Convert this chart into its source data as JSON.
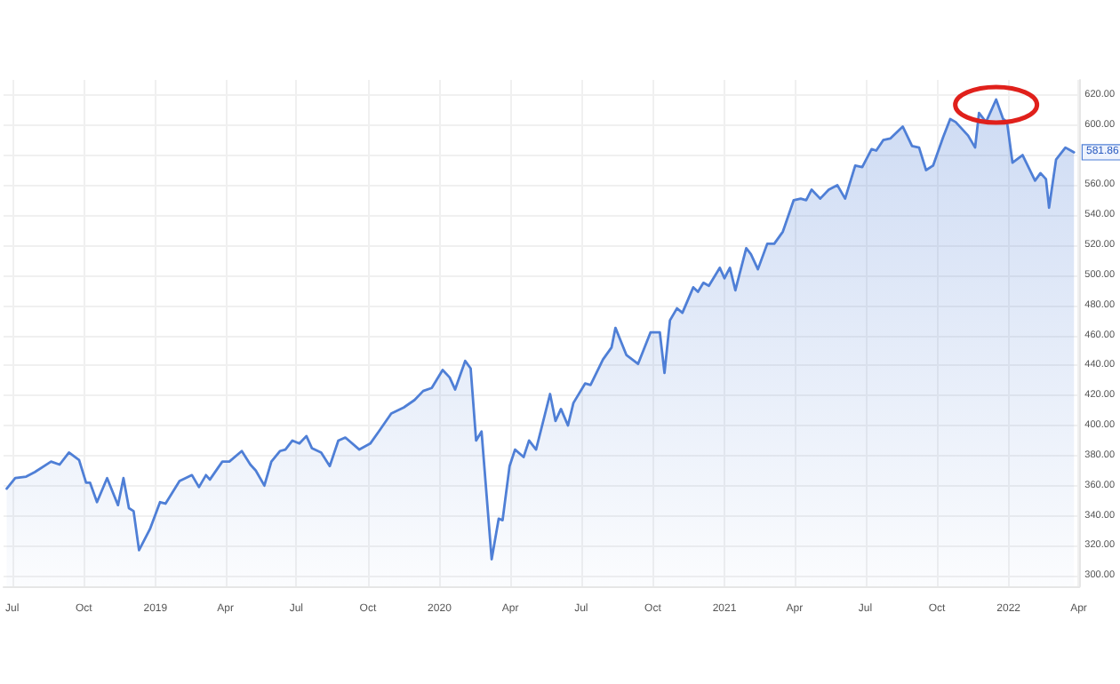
{
  "chart_data": {
    "type": "area",
    "color": "#4f7fd6",
    "marker": "none",
    "grid": true,
    "x": [
      "2018-06-24",
      "2018-07-05",
      "2018-07-19",
      "2018-07-30",
      "2018-08-20",
      "2018-08-31",
      "2018-09-12",
      "2018-09-25",
      "2018-10-04",
      "2018-10-09",
      "2018-10-18",
      "2018-10-31",
      "2018-11-14",
      "2018-11-21",
      "2018-11-28",
      "2018-12-04",
      "2018-12-11",
      "2018-12-25",
      "2019-01-07",
      "2019-01-14",
      "2019-02-01",
      "2019-02-17",
      "2019-02-26",
      "2019-03-07",
      "2019-03-12",
      "2019-03-28",
      "2019-04-06",
      "2019-04-22",
      "2019-05-03",
      "2019-05-10",
      "2019-05-21",
      "2019-05-30",
      "2019-06-10",
      "2019-06-17",
      "2019-06-26",
      "2019-07-05",
      "2019-07-14",
      "2019-07-21",
      "2019-08-02",
      "2019-08-13",
      "2019-08-24",
      "2019-09-02",
      "2019-09-20",
      "2019-10-04",
      "2019-10-15",
      "2019-10-31",
      "2019-11-16",
      "2019-11-30",
      "2019-12-11",
      "2019-12-22",
      "2020-01-05",
      "2020-01-14",
      "2020-01-21",
      "2020-02-03",
      "2020-02-10",
      "2020-02-17",
      "2020-02-24",
      "2020-03-08",
      "2020-03-17",
      "2020-03-22",
      "2020-03-31",
      "2020-04-07",
      "2020-04-18",
      "2020-04-25",
      "2020-05-04",
      "2020-05-22",
      "2020-05-29",
      "2020-06-05",
      "2020-06-14",
      "2020-06-21",
      "2020-07-06",
      "2020-07-13",
      "2020-07-29",
      "2020-08-09",
      "2020-08-14",
      "2020-08-28",
      "2020-09-12",
      "2020-09-28",
      "2020-10-10",
      "2020-10-16",
      "2020-10-23",
      "2020-11-01",
      "2020-11-08",
      "2020-11-22",
      "2020-11-28",
      "2020-12-05",
      "2020-12-12",
      "2020-12-26",
      "2021-01-01",
      "2021-01-08",
      "2021-01-15",
      "2021-01-29",
      "2021-02-04",
      "2021-02-13",
      "2021-02-25",
      "2021-03-06",
      "2021-03-17",
      "2021-03-31",
      "2021-04-09",
      "2021-04-16",
      "2021-04-23",
      "2021-05-04",
      "2021-05-15",
      "2021-05-26",
      "2021-06-05",
      "2021-06-18",
      "2021-06-27",
      "2021-07-09",
      "2021-07-15",
      "2021-07-24",
      "2021-08-02",
      "2021-08-18",
      "2021-08-30",
      "2021-09-08",
      "2021-09-17",
      "2021-09-26",
      "2021-10-09",
      "2021-10-18",
      "2021-10-25",
      "2021-11-10",
      "2021-11-19",
      "2021-11-24",
      "2021-12-03",
      "2021-12-16",
      "2021-12-25",
      "2021-12-30",
      "2022-01-06",
      "2022-01-19",
      "2022-02-04",
      "2022-02-11",
      "2022-02-18",
      "2022-02-22",
      "2022-03-03",
      "2022-03-15",
      "2022-03-22",
      "2022-03-26"
    ],
    "values": [
      358,
      365,
      366,
      369,
      376,
      374,
      382,
      377,
      362,
      362,
      349,
      365,
      347,
      365,
      345,
      343,
      317,
      331,
      349,
      348,
      363,
      367,
      359,
      367,
      364,
      376,
      376,
      383,
      374,
      370,
      360,
      376,
      383,
      384,
      390,
      388,
      393,
      385,
      382,
      373,
      390,
      392,
      384,
      388,
      396,
      408,
      412,
      417,
      423,
      425,
      437,
      432,
      424,
      443,
      438,
      390,
      396,
      311,
      338,
      337,
      373,
      384,
      379,
      390,
      384,
      421,
      403,
      411,
      400,
      415,
      428,
      427,
      444,
      452,
      465,
      447,
      441,
      462,
      462,
      435,
      470,
      478,
      475,
      492,
      489,
      495,
      493,
      505,
      498,
      505,
      490,
      518,
      514,
      504,
      521,
      521,
      529,
      550,
      551,
      550,
      557,
      551,
      557,
      560,
      551,
      573,
      572,
      584,
      583,
      590,
      591,
      599,
      586,
      585,
      570,
      573,
      592,
      604,
      602,
      593,
      585,
      608,
      602,
      617,
      604,
      602,
      575,
      580,
      563,
      568,
      564,
      545,
      577,
      585,
      583,
      581.86
    ],
    "xlim": [
      "2018-06-20",
      "2022-04-02"
    ],
    "xticks": [
      {
        "value": "2018-07-01",
        "label": "Jul"
      },
      {
        "value": "2018-10-01",
        "label": "Oct"
      },
      {
        "value": "2019-01-01",
        "label": "2019"
      },
      {
        "value": "2019-04-01",
        "label": "Apr"
      },
      {
        "value": "2019-07-01",
        "label": "Jul"
      },
      {
        "value": "2019-10-01",
        "label": "Oct"
      },
      {
        "value": "2020-01-01",
        "label": "2020"
      },
      {
        "value": "2020-04-01",
        "label": "Apr"
      },
      {
        "value": "2020-07-01",
        "label": "Jul"
      },
      {
        "value": "2020-10-01",
        "label": "Oct"
      },
      {
        "value": "2021-01-01",
        "label": "2021"
      },
      {
        "value": "2021-04-01",
        "label": "Apr"
      },
      {
        "value": "2021-07-01",
        "label": "Jul"
      },
      {
        "value": "2021-10-01",
        "label": "Oct"
      },
      {
        "value": "2022-01-01",
        "label": "2022"
      },
      {
        "value": "2022-04-01",
        "label": "Apr"
      }
    ],
    "ylim": [
      293,
      630
    ],
    "yticks": [
      {
        "value": 300,
        "label": "300.00"
      },
      {
        "value": 320,
        "label": "320.00"
      },
      {
        "value": 340,
        "label": "340.00"
      },
      {
        "value": 360,
        "label": "360.00"
      },
      {
        "value": 380,
        "label": "380.00"
      },
      {
        "value": 400,
        "label": "400.00"
      },
      {
        "value": 420,
        "label": "420.00"
      },
      {
        "value": 440,
        "label": "440.00"
      },
      {
        "value": 460,
        "label": "460.00"
      },
      {
        "value": 480,
        "label": "480.00"
      },
      {
        "value": 500,
        "label": "500.00"
      },
      {
        "value": 520,
        "label": "520.00"
      },
      {
        "value": 540,
        "label": "540.00"
      },
      {
        "value": 560,
        "label": "560.00"
      },
      {
        "value": 580,
        "label": null
      },
      {
        "value": 600,
        "label": "600.00"
      },
      {
        "value": 620,
        "label": "620.00"
      }
    ],
    "annotations": [
      {
        "text": "581.86",
        "x": "2022-03-26",
        "y": 581.86
      }
    ]
  }
}
